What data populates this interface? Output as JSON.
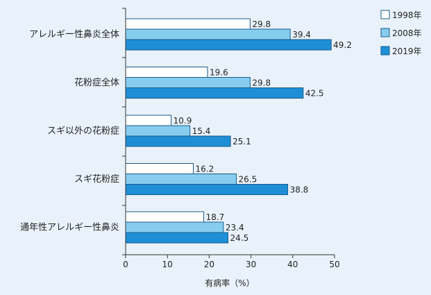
{
  "chart_data": {
    "type": "bar",
    "orientation": "horizontal",
    "categories": [
      "アレルギー性鼻炎全体",
      "花粉症全体",
      "スギ以外の花粉症",
      "スギ花粉症",
      "通年性アレルギー性鼻炎"
    ],
    "series": [
      {
        "name": "1998年",
        "values": [
          29.8,
          19.6,
          10.9,
          16.2,
          18.7
        ],
        "color": "#ffffff"
      },
      {
        "name": "2008年",
        "values": [
          39.4,
          29.8,
          15.4,
          26.5,
          23.4
        ],
        "color": "#87cdf0"
      },
      {
        "name": "2019年",
        "values": [
          49.2,
          42.5,
          25.1,
          38.8,
          24.5
        ],
        "color": "#1e8fd6"
      }
    ],
    "xlabel": "有病率（%）",
    "xlim": [
      0,
      50
    ],
    "xticks": [
      0,
      10,
      20,
      30,
      40,
      50
    ],
    "legend_position": "top-right",
    "grid": false
  }
}
